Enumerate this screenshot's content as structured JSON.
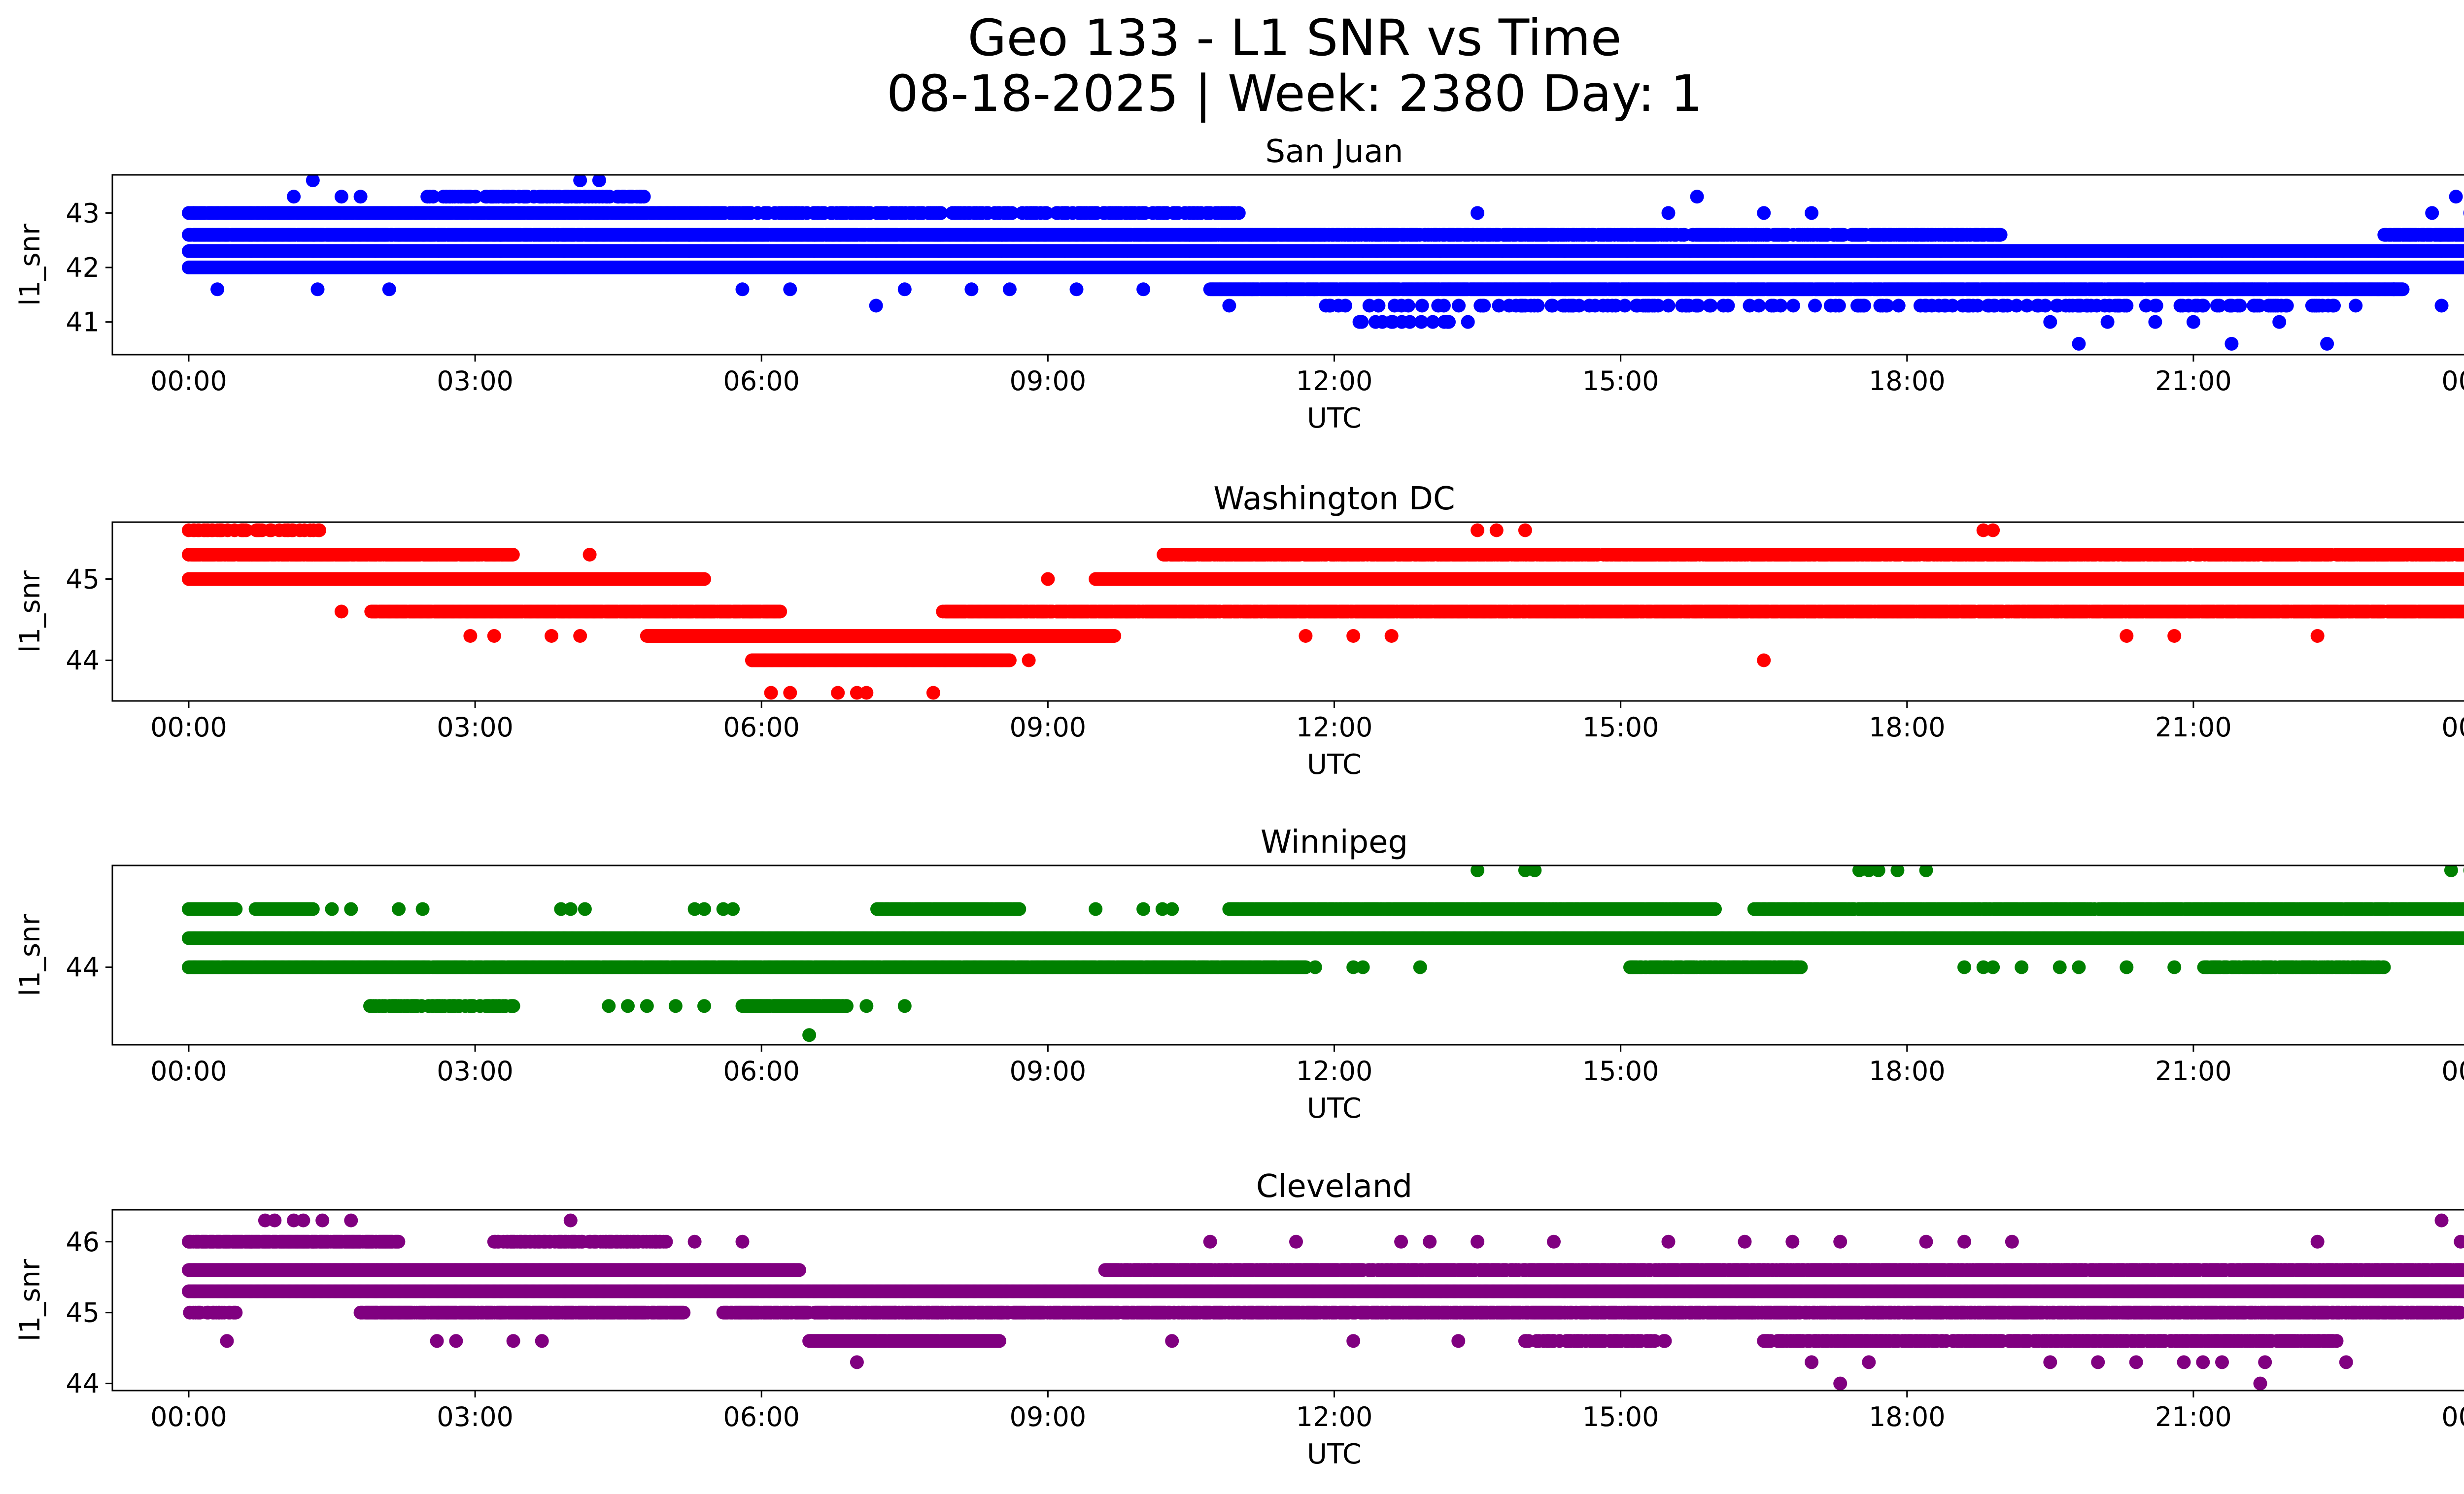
{
  "figure": {
    "title_line1": "Geo 133 - L1 SNR vs Time",
    "title_line2": "08-18-2025 | Week: 2380 Day: 1"
  },
  "chart_data": [
    {
      "type": "scatter",
      "title": "San Juan",
      "xlabel": "UTC",
      "ylabel": "l1_snr",
      "color": "#0000ff",
      "x_range_hours": [
        -0.8,
        24.8
      ],
      "x_tick_hours": [
        0,
        3,
        6,
        9,
        12,
        15,
        18,
        21,
        24
      ],
      "x_tick_labels": [
        "00:00",
        "03:00",
        "06:00",
        "09:00",
        "12:00",
        "15:00",
        "18:00",
        "21:00",
        "00:00"
      ],
      "ylim": [
        40.4,
        43.7
      ],
      "y_ticks": [
        41,
        42,
        43
      ],
      "y_tick_labels": [
        "41",
        "42",
        "43"
      ],
      "bands": [
        {
          "y": 42.6,
          "start": 0.0,
          "end": 11.9,
          "density": 0.97
        },
        {
          "y": 42.6,
          "start": 11.9,
          "end": 19.0,
          "density": 0.7
        },
        {
          "y": 42.6,
          "start": 23.0,
          "end": 24.0,
          "density": 0.9
        },
        {
          "y": 42.3,
          "start": 0.0,
          "end": 24.0,
          "density": 1.0
        },
        {
          "y": 42.0,
          "start": 0.0,
          "end": 24.0,
          "density": 1.0
        },
        {
          "y": 41.6,
          "start": 10.7,
          "end": 23.2,
          "density": 0.97
        },
        {
          "y": 43.0,
          "start": 0.0,
          "end": 5.6,
          "density": 0.9
        },
        {
          "y": 43.0,
          "start": 5.6,
          "end": 11.0,
          "density": 0.45
        },
        {
          "y": 41.3,
          "start": 11.9,
          "end": 22.5,
          "density": 0.18
        },
        {
          "y": 43.3,
          "start": 2.5,
          "end": 4.8,
          "density": 0.4
        },
        {
          "y": 41.0,
          "start": 12.0,
          "end": 13.2,
          "density": 0.06
        }
      ],
      "points": [
        [
          0.05,
          43.0
        ],
        [
          0.3,
          41.6
        ],
        [
          1.1,
          43.3
        ],
        [
          1.3,
          43.6
        ],
        [
          1.35,
          41.6
        ],
        [
          1.6,
          43.3
        ],
        [
          1.8,
          43.3
        ],
        [
          2.1,
          41.6
        ],
        [
          2.95,
          43.3
        ],
        [
          3.3,
          43.3
        ],
        [
          4.1,
          43.6
        ],
        [
          4.3,
          43.6
        ],
        [
          5.05,
          42.0
        ],
        [
          5.8,
          41.6
        ],
        [
          6.3,
          41.6
        ],
        [
          7.2,
          41.3
        ],
        [
          7.5,
          41.6
        ],
        [
          8.2,
          41.6
        ],
        [
          8.6,
          41.6
        ],
        [
          9.3,
          41.6
        ],
        [
          10.0,
          41.6
        ],
        [
          10.9,
          41.3
        ],
        [
          11.5,
          41.6
        ],
        [
          12.3,
          42.3
        ],
        [
          12.6,
          41.0
        ],
        [
          13.2,
          41.0
        ],
        [
          13.5,
          43.0
        ],
        [
          13.4,
          41.0
        ],
        [
          14.5,
          41.3
        ],
        [
          15.3,
          41.3
        ],
        [
          15.8,
          43.3
        ],
        [
          15.5,
          43.0
        ],
        [
          16.5,
          43.0
        ],
        [
          17.0,
          43.0
        ],
        [
          17.2,
          41.3
        ],
        [
          19.0,
          41.3
        ],
        [
          19.5,
          41.0
        ],
        [
          19.8,
          40.6
        ],
        [
          20.1,
          41.0
        ],
        [
          20.6,
          41.0
        ],
        [
          21.0,
          41.0
        ],
        [
          21.3,
          42.3
        ],
        [
          21.4,
          40.6
        ],
        [
          21.9,
          41.0
        ],
        [
          22.4,
          40.6
        ],
        [
          22.7,
          41.3
        ],
        [
          23.1,
          41.6
        ],
        [
          23.5,
          43.0
        ],
        [
          23.75,
          43.3
        ],
        [
          23.9,
          43.0
        ],
        [
          23.6,
          41.3
        ]
      ]
    },
    {
      "type": "scatter",
      "title": "Washington DC",
      "xlabel": "UTC",
      "ylabel": "l1_snr",
      "color": "#ff0000",
      "x_range_hours": [
        -0.8,
        24.8
      ],
      "x_tick_hours": [
        0,
        3,
        6,
        9,
        12,
        15,
        18,
        21,
        24
      ],
      "x_tick_labels": [
        "00:00",
        "03:00",
        "06:00",
        "09:00",
        "12:00",
        "15:00",
        "18:00",
        "21:00",
        "00:00"
      ],
      "ylim": [
        43.5,
        45.7
      ],
      "y_ticks": [
        44,
        45
      ],
      "y_tick_labels": [
        "44",
        "45"
      ],
      "bands": [
        {
          "y": 45.3,
          "start": 0.0,
          "end": 3.4,
          "density": 0.9
        },
        {
          "y": 45.3,
          "start": 10.2,
          "end": 24.0,
          "density": 0.8
        },
        {
          "y": 45.0,
          "start": 0.0,
          "end": 5.4,
          "density": 1.0
        },
        {
          "y": 45.0,
          "start": 9.5,
          "end": 24.0,
          "density": 1.0
        },
        {
          "y": 44.6,
          "start": 1.9,
          "end": 6.2,
          "density": 0.97
        },
        {
          "y": 44.6,
          "start": 7.9,
          "end": 24.0,
          "density": 0.93
        },
        {
          "y": 44.3,
          "start": 4.8,
          "end": 9.7,
          "density": 1.0
        },
        {
          "y": 44.0,
          "start": 5.9,
          "end": 8.6,
          "density": 1.0
        },
        {
          "y": 45.6,
          "start": 0.0,
          "end": 1.4,
          "density": 0.4
        }
      ],
      "points": [
        [
          1.6,
          44.6
        ],
        [
          2.95,
          44.3
        ],
        [
          3.2,
          44.3
        ],
        [
          3.8,
          44.3
        ],
        [
          4.1,
          44.3
        ],
        [
          4.2,
          45.3
        ],
        [
          6.1,
          43.6
        ],
        [
          6.3,
          43.6
        ],
        [
          6.8,
          43.6
        ],
        [
          7.0,
          43.6
        ],
        [
          7.1,
          43.6
        ],
        [
          7.8,
          43.6
        ],
        [
          8.8,
          44.0
        ],
        [
          9.0,
          45.0
        ],
        [
          10.3,
          45.3
        ],
        [
          11.7,
          44.3
        ],
        [
          12.2,
          44.3
        ],
        [
          12.6,
          44.3
        ],
        [
          12.0,
          45.3
        ],
        [
          13.3,
          44.6
        ],
        [
          13.5,
          45.6
        ],
        [
          13.7,
          45.6
        ],
        [
          13.8,
          44.6
        ],
        [
          14.0,
          45.6
        ],
        [
          16.5,
          44.0
        ],
        [
          17.9,
          44.6
        ],
        [
          18.3,
          44.6
        ],
        [
          18.8,
          45.6
        ],
        [
          18.9,
          45.6
        ],
        [
          20.3,
          44.3
        ],
        [
          20.8,
          44.3
        ],
        [
          22.3,
          44.3
        ]
      ]
    },
    {
      "type": "scatter",
      "title": "Winnipeg",
      "xlabel": "UTC",
      "ylabel": "l1_snr",
      "color": "#008000",
      "x_range_hours": [
        -0.8,
        24.8
      ],
      "x_tick_hours": [
        0,
        3,
        6,
        9,
        12,
        15,
        18,
        21,
        24
      ],
      "x_tick_labels": [
        "00:00",
        "03:00",
        "06:00",
        "09:00",
        "12:00",
        "15:00",
        "18:00",
        "21:00",
        "00:00"
      ],
      "ylim": [
        43.2,
        45.05
      ],
      "y_ticks": [
        44
      ],
      "y_tick_labels": [
        "44"
      ],
      "bands": [
        {
          "y": 44.6,
          "start": 0.0,
          "end": 0.5,
          "density": 1.0
        },
        {
          "y": 44.6,
          "start": 0.7,
          "end": 1.3,
          "density": 1.0
        },
        {
          "y": 44.6,
          "start": 7.2,
          "end": 8.7,
          "density": 0.9
        },
        {
          "y": 44.6,
          "start": 10.9,
          "end": 16.0,
          "density": 0.95
        },
        {
          "y": 44.6,
          "start": 16.4,
          "end": 24.0,
          "density": 0.85
        },
        {
          "y": 44.3,
          "start": 0.0,
          "end": 24.0,
          "density": 1.0
        },
        {
          "y": 44.0,
          "start": 0.0,
          "end": 11.7,
          "density": 0.98
        },
        {
          "y": 44.0,
          "start": 15.1,
          "end": 16.9,
          "density": 0.85
        },
        {
          "y": 44.0,
          "start": 21.1,
          "end": 23.0,
          "density": 0.7
        },
        {
          "y": 43.6,
          "start": 1.9,
          "end": 3.4,
          "density": 0.45
        },
        {
          "y": 43.6,
          "start": 5.8,
          "end": 6.9,
          "density": 0.9
        }
      ],
      "points": [
        [
          1.5,
          44.6
        ],
        [
          1.7,
          44.6
        ],
        [
          2.2,
          44.6
        ],
        [
          2.45,
          44.6
        ],
        [
          3.9,
          44.6
        ],
        [
          4.0,
          44.6
        ],
        [
          4.15,
          44.6
        ],
        [
          5.3,
          44.6
        ],
        [
          5.4,
          44.6
        ],
        [
          5.6,
          44.6
        ],
        [
          5.7,
          44.6
        ],
        [
          9.5,
          44.6
        ],
        [
          10.0,
          44.6
        ],
        [
          10.2,
          44.6
        ],
        [
          10.3,
          44.6
        ],
        [
          4.4,
          43.6
        ],
        [
          4.6,
          43.6
        ],
        [
          4.8,
          43.6
        ],
        [
          5.1,
          43.6
        ],
        [
          5.4,
          43.6
        ],
        [
          7.1,
          43.6
        ],
        [
          7.5,
          43.6
        ],
        [
          6.5,
          43.3
        ],
        [
          11.8,
          44.0
        ],
        [
          12.2,
          44.0
        ],
        [
          12.3,
          44.0
        ],
        [
          12.9,
          44.0
        ],
        [
          13.5,
          45.0
        ],
        [
          14.0,
          45.0
        ],
        [
          14.1,
          45.0
        ],
        [
          17.5,
          45.0
        ],
        [
          17.6,
          45.0
        ],
        [
          17.7,
          45.0
        ],
        [
          17.9,
          45.0
        ],
        [
          18.2,
          45.0
        ],
        [
          18.6,
          44.0
        ],
        [
          18.8,
          44.0
        ],
        [
          18.9,
          44.0
        ],
        [
          19.2,
          44.0
        ],
        [
          19.6,
          44.0
        ],
        [
          19.8,
          44.0
        ],
        [
          20.3,
          44.0
        ],
        [
          20.8,
          44.0
        ],
        [
          23.7,
          45.0
        ],
        [
          23.9,
          45.0
        ]
      ]
    },
    {
      "type": "scatter",
      "title": "Cleveland",
      "xlabel": "UTC",
      "ylabel": "l1_snr",
      "color": "#800080",
      "x_range_hours": [
        -0.8,
        24.8
      ],
      "x_tick_hours": [
        0,
        3,
        6,
        9,
        12,
        15,
        18,
        21,
        24
      ],
      "x_tick_labels": [
        "00:00",
        "03:00",
        "06:00",
        "09:00",
        "12:00",
        "15:00",
        "18:00",
        "21:00",
        "00:00"
      ],
      "ylim": [
        43.9,
        46.45
      ],
      "y_ticks": [
        44,
        45,
        46
      ],
      "y_tick_labels": [
        "44",
        "45",
        "46"
      ],
      "bands": [
        {
          "y": 46.0,
          "start": 0.0,
          "end": 2.2,
          "density": 0.9
        },
        {
          "y": 46.0,
          "start": 3.2,
          "end": 5.0,
          "density": 0.55
        },
        {
          "y": 45.6,
          "start": 0.0,
          "end": 6.4,
          "density": 1.0
        },
        {
          "y": 45.6,
          "start": 9.6,
          "end": 24.0,
          "density": 0.82
        },
        {
          "y": 45.3,
          "start": 0.0,
          "end": 24.0,
          "density": 1.0
        },
        {
          "y": 45.0,
          "start": 0.0,
          "end": 0.5,
          "density": 0.5
        },
        {
          "y": 45.0,
          "start": 1.8,
          "end": 5.2,
          "density": 0.9
        },
        {
          "y": 45.0,
          "start": 5.6,
          "end": 23.8,
          "density": 0.82
        },
        {
          "y": 44.6,
          "start": 6.5,
          "end": 8.5,
          "density": 0.97
        },
        {
          "y": 44.6,
          "start": 16.5,
          "end": 22.5,
          "density": 0.6
        },
        {
          "y": 44.6,
          "start": 14.0,
          "end": 15.5,
          "density": 0.4
        }
      ],
      "points": [
        [
          0.8,
          46.3
        ],
        [
          0.9,
          46.3
        ],
        [
          1.1,
          46.3
        ],
        [
          1.2,
          46.3
        ],
        [
          1.4,
          46.3
        ],
        [
          1.7,
          46.3
        ],
        [
          4.0,
          46.3
        ],
        [
          0.4,
          44.6
        ],
        [
          2.6,
          44.6
        ],
        [
          2.8,
          44.6
        ],
        [
          3.4,
          44.6
        ],
        [
          3.7,
          44.6
        ],
        [
          5.8,
          46.0
        ],
        [
          5.3,
          46.0
        ],
        [
          7.0,
          44.3
        ],
        [
          7.4,
          45.0
        ],
        [
          10.3,
          44.6
        ],
        [
          10.7,
          46.0
        ],
        [
          11.6,
          46.0
        ],
        [
          12.2,
          44.6
        ],
        [
          12.7,
          46.0
        ],
        [
          13.0,
          46.0
        ],
        [
          13.3,
          44.6
        ],
        [
          13.5,
          46.0
        ],
        [
          14.3,
          46.0
        ],
        [
          15.5,
          46.0
        ],
        [
          16.3,
          46.0
        ],
        [
          16.8,
          46.0
        ],
        [
          17.0,
          44.3
        ],
        [
          17.3,
          44.0
        ],
        [
          17.3,
          46.0
        ],
        [
          17.6,
          44.3
        ],
        [
          18.2,
          46.0
        ],
        [
          18.6,
          46.0
        ],
        [
          19.1,
          46.0
        ],
        [
          19.5,
          44.3
        ],
        [
          20.0,
          44.3
        ],
        [
          20.4,
          44.3
        ],
        [
          20.9,
          44.3
        ],
        [
          21.1,
          44.3
        ],
        [
          21.3,
          44.3
        ],
        [
          21.7,
          44.0
        ],
        [
          21.75,
          44.3
        ],
        [
          22.3,
          46.0
        ],
        [
          22.6,
          44.3
        ],
        [
          23.6,
          46.3
        ],
        [
          23.8,
          46.0
        ],
        [
          24.0,
          46.0
        ]
      ]
    }
  ]
}
